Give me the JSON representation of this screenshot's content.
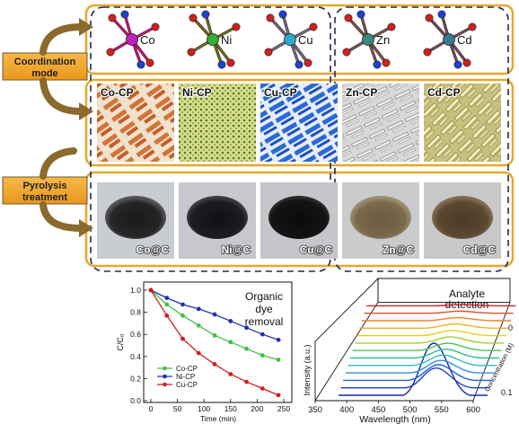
{
  "side_labels": {
    "coordination": [
      "Coordination",
      "mode"
    ],
    "pyrolysis": [
      "Pyrolysis",
      "treatment"
    ]
  },
  "metals": [
    "Co",
    "Ni",
    "Cu",
    "Zn",
    "Cd"
  ],
  "metal_colors": [
    "#c020c0",
    "#30b030",
    "#30a8d0",
    "#3a8a80",
    "#3a7a90"
  ],
  "crystals": [
    "Co-CP",
    "Ni-CP",
    "Cu-CP",
    "Zn-CP",
    "Cd-CP"
  ],
  "carbons": [
    "Co@C",
    "Ni@C",
    "Cu@C",
    "Zn@C",
    "Cd@C"
  ],
  "colors": {
    "frame": "#e6a82a",
    "dashed": "#1e2a55",
    "label_box": "#f1a62f",
    "arrow": "#8c6a2c"
  },
  "chart_data": [
    {
      "type": "line",
      "title": "Organic dye removal",
      "title_lines": [
        "Organic",
        "dye",
        "removal"
      ],
      "xlabel": "Time (min)",
      "ylabel": "C/C₀",
      "xlim": [
        0,
        250
      ],
      "ylim": [
        0,
        1.0
      ],
      "xticks": [
        "0",
        "50",
        "100",
        "150",
        "200",
        "250"
      ],
      "yticks": [
        "0.0",
        "0.2",
        "0.4",
        "0.6",
        "0.8",
        "1.0"
      ],
      "series": [
        {
          "name": "Co-CP",
          "color": "#40c040",
          "x": [
            0,
            30,
            60,
            90,
            120,
            150,
            180,
            210,
            240
          ],
          "values": [
            1.0,
            0.87,
            0.77,
            0.68,
            0.59,
            0.53,
            0.47,
            0.41,
            0.37
          ]
        },
        {
          "name": "Ni-CP",
          "color": "#2030b0",
          "x": [
            0,
            30,
            60,
            90,
            120,
            150,
            180,
            210,
            240
          ],
          "values": [
            1.0,
            0.93,
            0.87,
            0.83,
            0.78,
            0.72,
            0.66,
            0.6,
            0.55
          ]
        },
        {
          "name": "Cu-CP",
          "color": "#d02020",
          "x": [
            0,
            30,
            60,
            90,
            120,
            150,
            180,
            210,
            240
          ],
          "values": [
            1.0,
            0.77,
            0.56,
            0.43,
            0.33,
            0.24,
            0.17,
            0.11,
            0.05
          ]
        }
      ],
      "legend": "bottom-left"
    },
    {
      "type": "line",
      "title": "Analyte detection",
      "title_lines": [
        "Analyte",
        "detection"
      ],
      "xlabel": "Wavelength (nm)",
      "ylabel": "Intensity (a.u.)",
      "zlabel": "Concentration (M)",
      "xlim": [
        350,
        600
      ],
      "xticks": [
        "350",
        "400",
        "450",
        "500",
        "550",
        "600"
      ],
      "depth_ticks": [
        "0",
        "0.1"
      ],
      "peak_nm": 510,
      "trace_count": 13,
      "trace_colors": [
        "#d02020",
        "#e05020",
        "#f08020",
        "#f0b020",
        "#e0d020",
        "#a0d030",
        "#50c050",
        "#30c090",
        "#30b8c8",
        "#3090e0",
        "#2060d8",
        "#1a3ec8",
        "#1a28b0"
      ],
      "trace_peaks": [
        0.02,
        0.04,
        0.06,
        0.08,
        0.1,
        0.12,
        0.14,
        0.17,
        0.2,
        0.24,
        0.3,
        0.38,
        1.0
      ]
    }
  ]
}
